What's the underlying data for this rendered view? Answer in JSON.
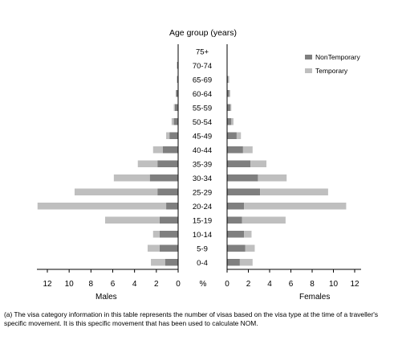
{
  "chart_data": {
    "type": "bar",
    "orientation": "horizontal-population-pyramid",
    "title": "Age group (years)",
    "categories": [
      "0-4",
      "5-9",
      "10-14",
      "15-19",
      "20-24",
      "25-29",
      "30-34",
      "35-39",
      "40-44",
      "45-49",
      "50-54",
      "55-59",
      "60-64",
      "65-69",
      "70-74",
      "75+"
    ],
    "left_label": "Males",
    "right_label": "Females",
    "center_axis_label": "%",
    "x_ticks": [
      0,
      2,
      4,
      6,
      8,
      10,
      12
    ],
    "xlim": [
      0,
      12.5
    ],
    "stacked": true,
    "legend_position": "top-right",
    "series": [
      {
        "name": "NonTemporary",
        "color": "#7f7f7f",
        "males": [
          1.2,
          1.7,
          1.7,
          1.7,
          1.1,
          1.9,
          2.6,
          1.9,
          1.4,
          0.8,
          0.4,
          0.3,
          0.2,
          0.1,
          0.1,
          0.0
        ],
        "females": [
          1.2,
          1.7,
          1.6,
          1.4,
          1.6,
          3.1,
          2.9,
          2.2,
          1.5,
          0.9,
          0.4,
          0.3,
          0.2,
          0.1,
          0.0,
          0.0
        ]
      },
      {
        "name": "Temporary",
        "color": "#bfbfbf",
        "males": [
          1.3,
          1.1,
          0.6,
          5.0,
          11.8,
          7.6,
          3.3,
          1.8,
          0.9,
          0.3,
          0.2,
          0.1,
          0.0,
          0.0,
          0.0,
          0.0
        ],
        "females": [
          1.2,
          0.9,
          0.7,
          4.1,
          9.6,
          6.4,
          2.7,
          1.5,
          0.9,
          0.4,
          0.2,
          0.1,
          0.1,
          0.1,
          0.0,
          0.0
        ]
      }
    ]
  },
  "footnote": "(a) The visa category information in this table represents the number of visas based on the visa type at the time of a traveller's specific movement. It is this specific movement that has been used to calculate NOM."
}
